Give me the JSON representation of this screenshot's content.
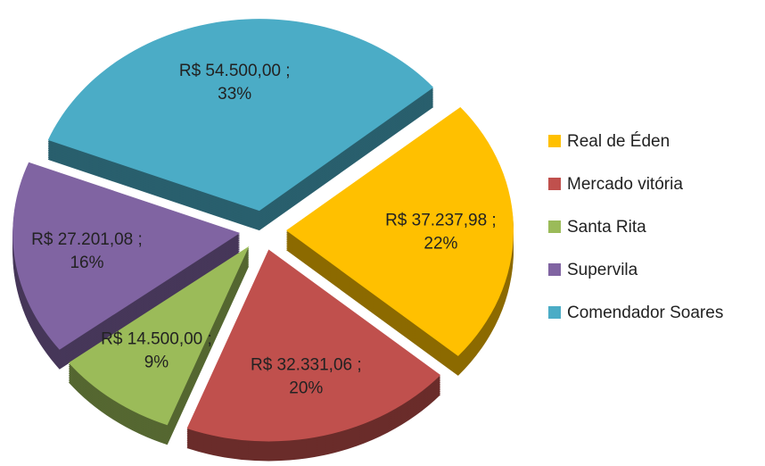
{
  "chart_data": {
    "type": "pie",
    "categories": [
      "Real de Éden",
      "Mercado vitória",
      "Santa Rita",
      "Supervila",
      "Comendador Soares"
    ],
    "values": [
      37237.98,
      32331.06,
      14500.0,
      27201.08,
      54500.0
    ],
    "value_labels": [
      "R$ 37.237,98 ;",
      "R$ 32.331,06 ;",
      "R$ 14.500,00 ;",
      "R$ 27.201,08 ;",
      "R$ 54.500,00 ;"
    ],
    "percent_labels": [
      "22%",
      "20%",
      "9%",
      "16%",
      "33%"
    ],
    "colors": [
      "#FFC000",
      "#C0504D",
      "#9BBB59",
      "#8064A2",
      "#4BACC6"
    ],
    "legend": "right"
  }
}
